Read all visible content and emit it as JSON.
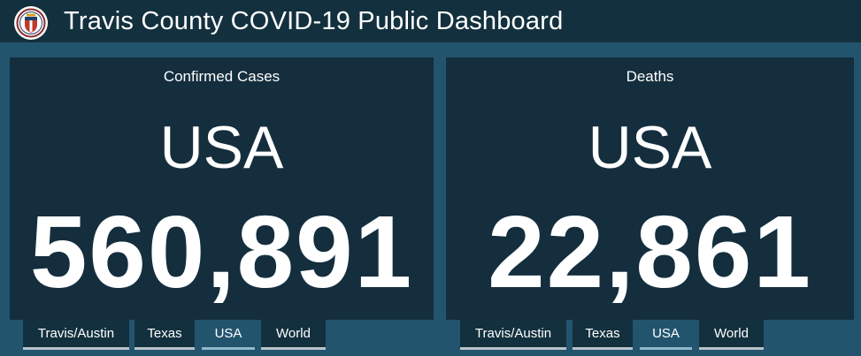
{
  "header": {
    "title": "Travis County COVID-19 Public Dashboard",
    "logo_icon": "city-of-austin-seal-icon"
  },
  "cases_panel": {
    "label": "Confirmed Cases",
    "region": "USA",
    "value": "560,891",
    "tabs": [
      {
        "label": "Travis/Austin",
        "active": false
      },
      {
        "label": "Texas",
        "active": false
      },
      {
        "label": "USA",
        "active": true
      },
      {
        "label": "World",
        "active": false
      }
    ]
  },
  "deaths_panel": {
    "label": "Deaths",
    "region": "USA",
    "value": "22,861",
    "tabs": [
      {
        "label": "Travis/Austin",
        "active": false
      },
      {
        "label": "Texas",
        "active": false
      },
      {
        "label": "USA",
        "active": true
      },
      {
        "label": "World",
        "active": false
      }
    ]
  },
  "colors": {
    "background": "#23546e",
    "header": "#13303e",
    "panel": "#142e3e",
    "text": "#ffffff"
  }
}
